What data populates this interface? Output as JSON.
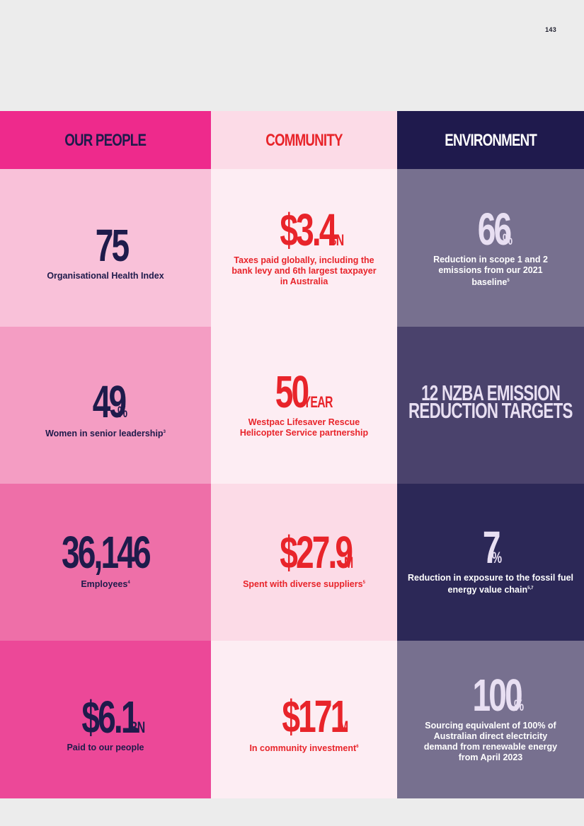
{
  "page_number": "143",
  "columns": [
    {
      "header": "OUR PEOPLE",
      "header_bg": "#ee2a8c",
      "header_color": "#1e1b4b",
      "cells": [
        {
          "value": "75",
          "unit": "",
          "desc": "Organisational Health Index",
          "sup": "",
          "bg": "#f9c1d9"
        },
        {
          "value": "49",
          "unit": "%",
          "desc": "Women in senior leadership",
          "sup": "3",
          "bg": "#f49dc3"
        },
        {
          "value": "36,146",
          "unit": "",
          "desc": "Employees",
          "sup": "4",
          "bg": "#ee6fa8"
        },
        {
          "value": "$6.1",
          "unit": "BN",
          "desc": "Paid to our people",
          "sup": "",
          "bg": "#ec4898"
        }
      ]
    },
    {
      "header": "COMMUNITY",
      "header_bg": "#fcdbe7",
      "header_color": "#e8242a",
      "cells": [
        {
          "value": "$3.4",
          "unit": "BN",
          "desc": "Taxes paid globally, including the bank levy and 6th largest taxpayer in Australia",
          "sup": "",
          "bg": "#fdedf3"
        },
        {
          "value": "50",
          "unit": "-YEAR",
          "desc": "Westpac Lifesaver Rescue Helicopter Service partnership",
          "sup": "",
          "bg": "#fdedf3"
        },
        {
          "value": "$27.9",
          "unit": "M",
          "desc": "Spent with diverse suppliers",
          "sup": "5",
          "bg": "#fcdbe7"
        },
        {
          "value": "$171",
          "unit": "M",
          "desc": "In community investment",
          "sup": "6",
          "bg": "#fdedf3"
        }
      ]
    },
    {
      "header": "ENVIRONMENT",
      "header_bg": "#1f1a4d",
      "header_color": "#ffffff",
      "cells": [
        {
          "value": "66",
          "unit": "%",
          "desc": "Reduction in scope 1 and 2 emissions from our 2021 baseline",
          "sup": "5",
          "bg": "#77708f"
        },
        {
          "phrase_line1": "12 NZBA EMISSION",
          "phrase_line2": "REDUCTION TARGETS",
          "bg": "#4a426c"
        },
        {
          "value": "7",
          "unit": "%",
          "desc": "Reduction in exposure to the fossil fuel energy value chain",
          "sup": "5,7",
          "bg": "#2c2857"
        },
        {
          "value": "100",
          "unit": "%",
          "desc": "Sourcing equivalent of 100% of Australian direct electricity demand from renewable energy from April 2023",
          "sup": "",
          "bg": "#77708f"
        }
      ]
    }
  ]
}
